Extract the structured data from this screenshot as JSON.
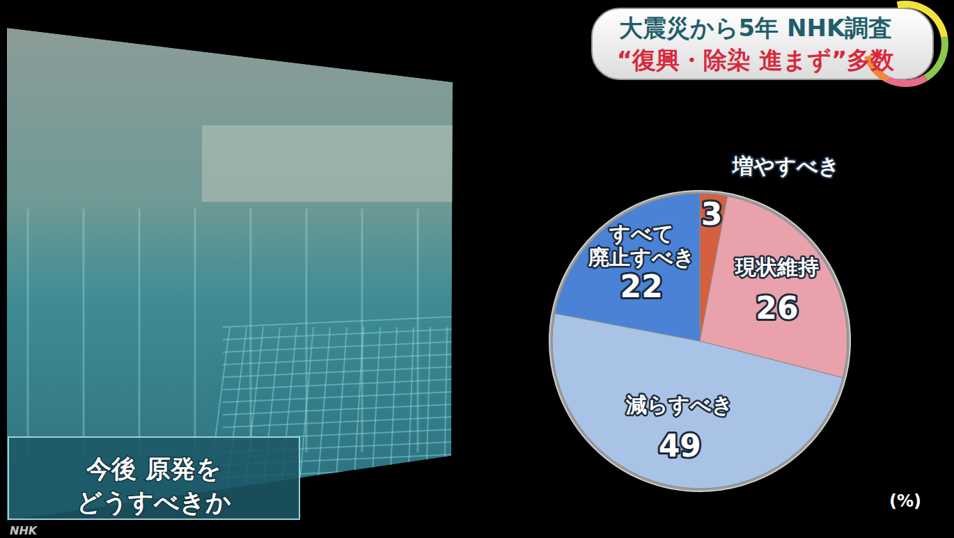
{
  "chart_data": {
    "type": "pie",
    "title": "大震災から5年 NHK調査",
    "subtitle": "“復興・除染 進まず”多数",
    "categories": [
      "増やすべき",
      "現状維持",
      "減らすべき",
      "すべて\n廃止すべき"
    ],
    "values": [
      3,
      26,
      49,
      22
    ],
    "colors": [
      "#d4603f",
      "#e9a1ab",
      "#a9c3e6",
      "#4a82d6"
    ],
    "data_labels": true,
    "annotations": [
      "今後 原発を\nどうすべきか",
      "(%)",
      "NHK"
    ]
  }
}
